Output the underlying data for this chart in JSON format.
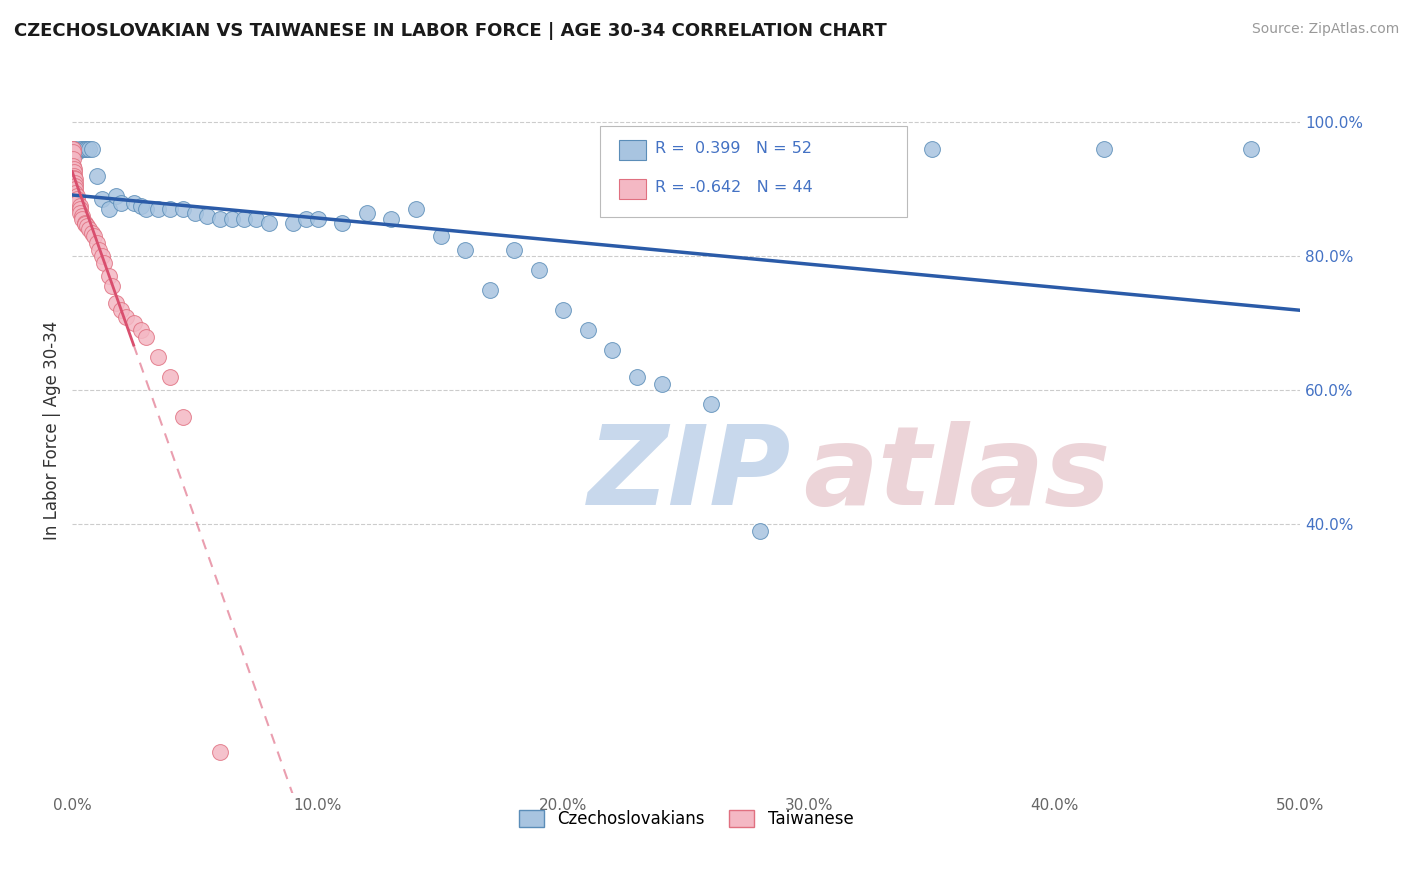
{
  "title": "CZECHOSLOVAKIAN VS TAIWANESE IN LABOR FORCE | AGE 30-34 CORRELATION CHART",
  "source_text": "Source: ZipAtlas.com",
  "ylabel": "In Labor Force | Age 30-34",
  "xlim": [
    0.0,
    0.5
  ],
  "ylim": [
    0.0,
    1.08
  ],
  "xtick_labels": [
    "0.0%",
    "10.0%",
    "20.0%",
    "30.0%",
    "40.0%",
    "50.0%"
  ],
  "xtick_values": [
    0.0,
    0.1,
    0.2,
    0.3,
    0.4,
    0.5
  ],
  "ytick_vals": [
    0.4,
    0.6,
    0.8,
    1.0
  ],
  "ytick_labels": [
    "40.0%",
    "60.0%",
    "80.0%",
    "100.0%"
  ],
  "blue_R": 0.399,
  "blue_N": 52,
  "pink_R": -0.642,
  "pink_N": 44,
  "blue_color": "#a8c4e0",
  "blue_edge": "#5b8db8",
  "pink_color": "#f4b8c4",
  "pink_edge": "#e07080",
  "trend_blue": "#2b5ba8",
  "trend_pink": "#d94f6e",
  "grid_color": "#cccccc",
  "background_color": "#ffffff",
  "blue_x": [
    0.001,
    0.001,
    0.002,
    0.003,
    0.004,
    0.005,
    0.005,
    0.006,
    0.007,
    0.008,
    0.01,
    0.012,
    0.015,
    0.018,
    0.02,
    0.025,
    0.028,
    0.03,
    0.035,
    0.04,
    0.045,
    0.05,
    0.055,
    0.06,
    0.065,
    0.07,
    0.075,
    0.08,
    0.09,
    0.095,
    0.1,
    0.11,
    0.12,
    0.13,
    0.14,
    0.15,
    0.16,
    0.17,
    0.18,
    0.19,
    0.2,
    0.21,
    0.22,
    0.23,
    0.24,
    0.26,
    0.28,
    0.3,
    0.32,
    0.35,
    0.42,
    0.48
  ],
  "blue_y": [
    0.96,
    0.955,
    0.955,
    0.96,
    0.96,
    0.96,
    0.96,
    0.96,
    0.96,
    0.96,
    0.92,
    0.885,
    0.87,
    0.89,
    0.88,
    0.88,
    0.875,
    0.87,
    0.87,
    0.87,
    0.87,
    0.865,
    0.86,
    0.855,
    0.855,
    0.855,
    0.855,
    0.85,
    0.85,
    0.855,
    0.855,
    0.85,
    0.865,
    0.855,
    0.87,
    0.83,
    0.81,
    0.75,
    0.81,
    0.78,
    0.72,
    0.69,
    0.66,
    0.62,
    0.61,
    0.58,
    0.39,
    0.96,
    0.96,
    0.96,
    0.96,
    0.96
  ],
  "pink_x": [
    0.0001,
    0.0002,
    0.0003,
    0.0004,
    0.0005,
    0.0006,
    0.0007,
    0.0008,
    0.0009,
    0.001,
    0.001,
    0.001,
    0.001,
    0.001,
    0.002,
    0.002,
    0.002,
    0.003,
    0.003,
    0.003,
    0.004,
    0.004,
    0.005,
    0.005,
    0.006,
    0.007,
    0.008,
    0.009,
    0.01,
    0.011,
    0.012,
    0.013,
    0.015,
    0.016,
    0.018,
    0.02,
    0.022,
    0.025,
    0.028,
    0.03,
    0.035,
    0.04,
    0.045,
    0.06
  ],
  "pink_y": [
    0.96,
    0.96,
    0.955,
    0.945,
    0.935,
    0.93,
    0.925,
    0.92,
    0.916,
    0.915,
    0.91,
    0.905,
    0.9,
    0.895,
    0.89,
    0.885,
    0.88,
    0.875,
    0.87,
    0.865,
    0.86,
    0.855,
    0.85,
    0.848,
    0.845,
    0.84,
    0.835,
    0.83,
    0.82,
    0.81,
    0.8,
    0.79,
    0.77,
    0.755,
    0.73,
    0.72,
    0.71,
    0.7,
    0.69,
    0.68,
    0.65,
    0.62,
    0.56,
    0.06
  ]
}
